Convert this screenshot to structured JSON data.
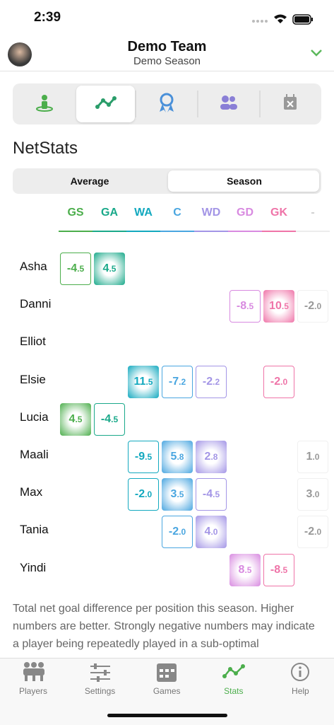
{
  "status": {
    "time": "2:39"
  },
  "header": {
    "team": "Demo Team",
    "season": "Demo Season"
  },
  "section_title": "NetStats",
  "segments": [
    "Average",
    "Season"
  ],
  "table": {
    "columns": [
      "GS",
      "GA",
      "WA",
      "C",
      "WD",
      "GD",
      "GK",
      "-"
    ],
    "rows": [
      {
        "name": "Asha",
        "values": [
          "-4.5",
          "4.5",
          null,
          null,
          null,
          null,
          null,
          null
        ]
      },
      {
        "name": "Danni",
        "values": [
          null,
          null,
          null,
          null,
          null,
          "-8.5",
          "10.5",
          "-2.0"
        ]
      },
      {
        "name": "Elliot",
        "values": [
          null,
          null,
          null,
          null,
          null,
          null,
          null,
          null
        ]
      },
      {
        "name": "Elsie",
        "values": [
          null,
          null,
          "11.5",
          "-7.2",
          "-2.2",
          null,
          "-2.0",
          null
        ]
      },
      {
        "name": "Lucia",
        "values": [
          "4.5",
          "-4.5",
          null,
          null,
          null,
          null,
          null,
          null
        ]
      },
      {
        "name": "Maali",
        "values": [
          null,
          null,
          "-9.5",
          "5.8",
          "2.8",
          null,
          null,
          "1.0"
        ]
      },
      {
        "name": "Max",
        "values": [
          null,
          null,
          "-2.0",
          "3.5",
          "-4.5",
          null,
          null,
          "3.0"
        ]
      },
      {
        "name": "Tania",
        "values": [
          null,
          null,
          null,
          "-2.0",
          "4.0",
          null,
          null,
          "-2.0"
        ]
      },
      {
        "name": "Yindi",
        "values": [
          null,
          null,
          null,
          null,
          null,
          "8.5",
          "-8.5",
          null
        ]
      }
    ]
  },
  "description": "Total net goal difference per position this season. Higher numbers are better. Strongly negative numbers may indicate a player being repeatedly played in a sub-optimal",
  "tabbar": [
    "Players",
    "Settings",
    "Games",
    "Stats",
    "Help"
  ]
}
